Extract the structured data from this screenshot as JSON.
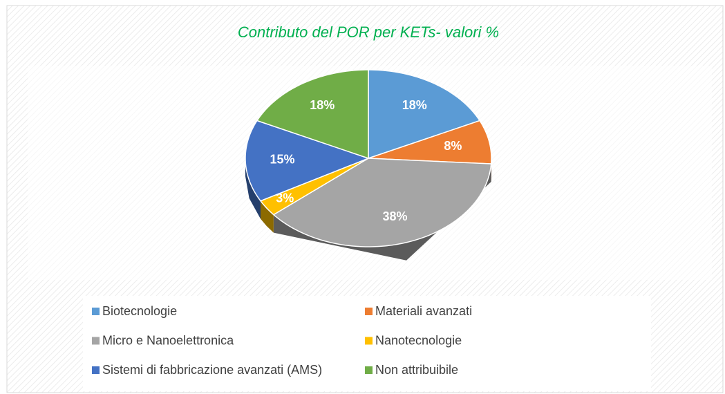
{
  "chart_data": {
    "type": "pie",
    "title": "Contributo del POR per KETs- valori %",
    "categories": [
      "Biotecnologie",
      "Materiali avanzati",
      "Micro e Nanoelettronica",
      "Nanotecnologie",
      "Sistemi di fabbricazione avanzati (AMS)",
      "Non attribuibile"
    ],
    "values": [
      18,
      8,
      38,
      3,
      15,
      18
    ],
    "value_labels": [
      "18%",
      "8%",
      "38%",
      "3%",
      "15%",
      "18%"
    ],
    "colors": [
      "#5b9bd5",
      "#ed7d31",
      "#a5a5a5",
      "#ffc000",
      "#4472c4",
      "#70ad47"
    ],
    "legend": "bottom"
  }
}
